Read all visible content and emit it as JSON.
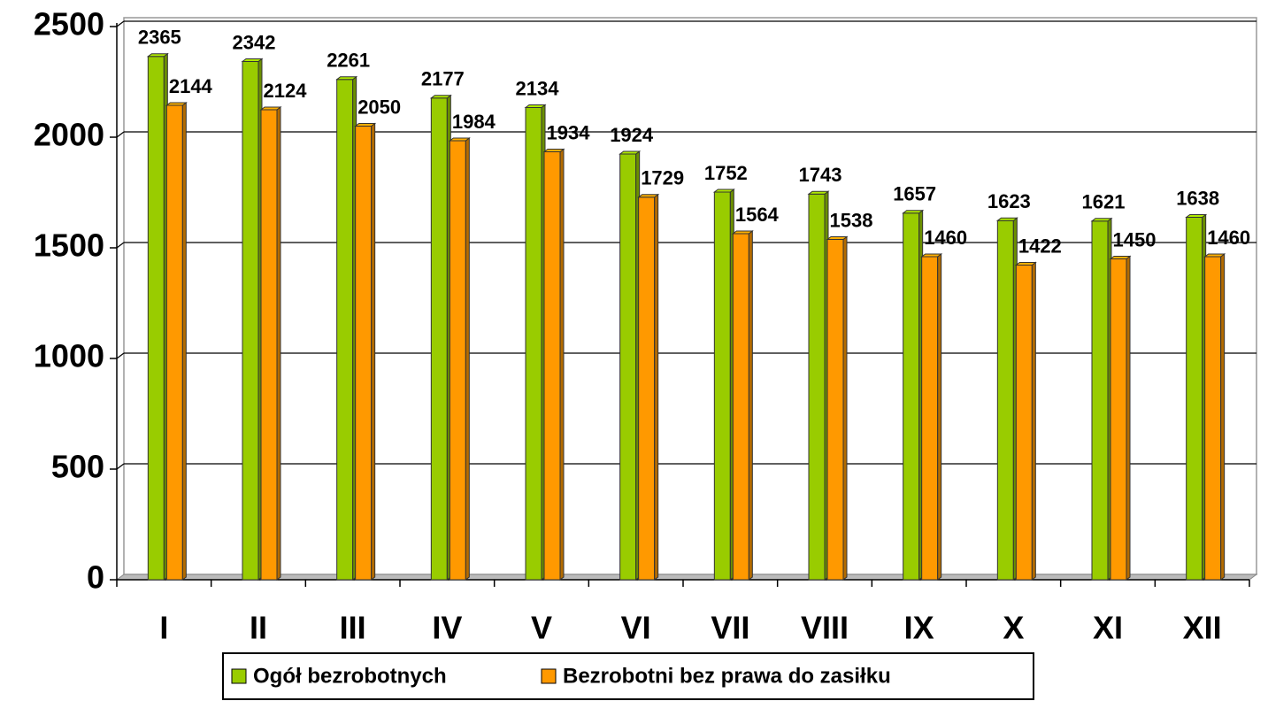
{
  "chart_data": {
    "type": "bar3d",
    "categories": [
      "I",
      "II",
      "III",
      "IV",
      "V",
      "VI",
      "VII",
      "VIII",
      "IX",
      "X",
      "XI",
      "XII"
    ],
    "series": [
      {
        "name": "Ogół bezrobotnych",
        "color": "#99cc00",
        "values": [
          2365,
          2342,
          2261,
          2177,
          2134,
          1924,
          1752,
          1743,
          1657,
          1623,
          1621,
          1638
        ]
      },
      {
        "name": "Bezrobotni bez prawa do zasiłku",
        "color": "#ff9900",
        "values": [
          2144,
          2124,
          2050,
          1984,
          1934,
          1729,
          1564,
          1538,
          1460,
          1422,
          1450,
          1460
        ]
      }
    ],
    "ylim": [
      0,
      2500
    ],
    "yticks": [
      0,
      500,
      1000,
      1500,
      2000,
      2500
    ],
    "grid": true,
    "legend": "bottom"
  }
}
